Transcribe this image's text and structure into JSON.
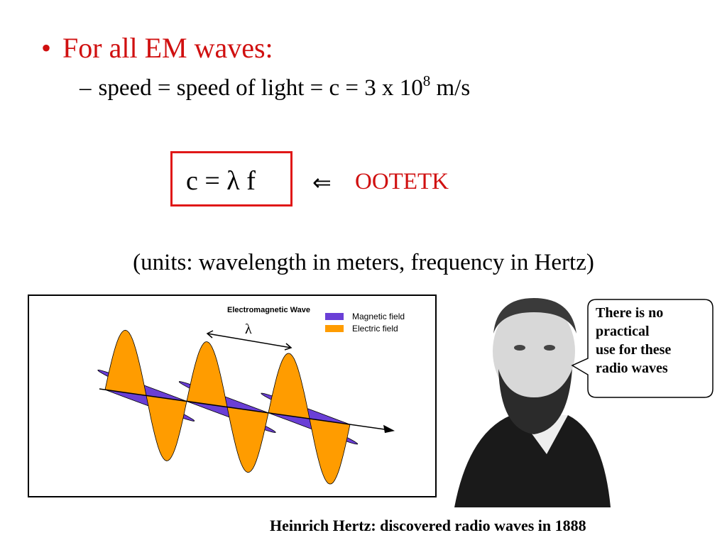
{
  "bullet": {
    "marker": "•",
    "text": "For all EM waves:"
  },
  "sub_bullet": {
    "marker": "–",
    "text": "speed = speed of light = c = 3 x 10",
    "superscript": "8",
    "unit": "m/s"
  },
  "formula": {
    "text": "c = λ f",
    "arrow": "⇐",
    "note": "OOTETK"
  },
  "units": "(units: wavelength in meters, frequency in Hertz)",
  "diagram": {
    "title": "Electromagnetic Wave",
    "legend": [
      "Magnetic field",
      "Electric field"
    ],
    "lambda": "λ"
  },
  "bubble": {
    "lines": [
      "There is no",
      "practical",
      "use for these",
      "radio waves"
    ]
  },
  "caption": "Heinrich Hertz:  discovered radio waves in 1888"
}
